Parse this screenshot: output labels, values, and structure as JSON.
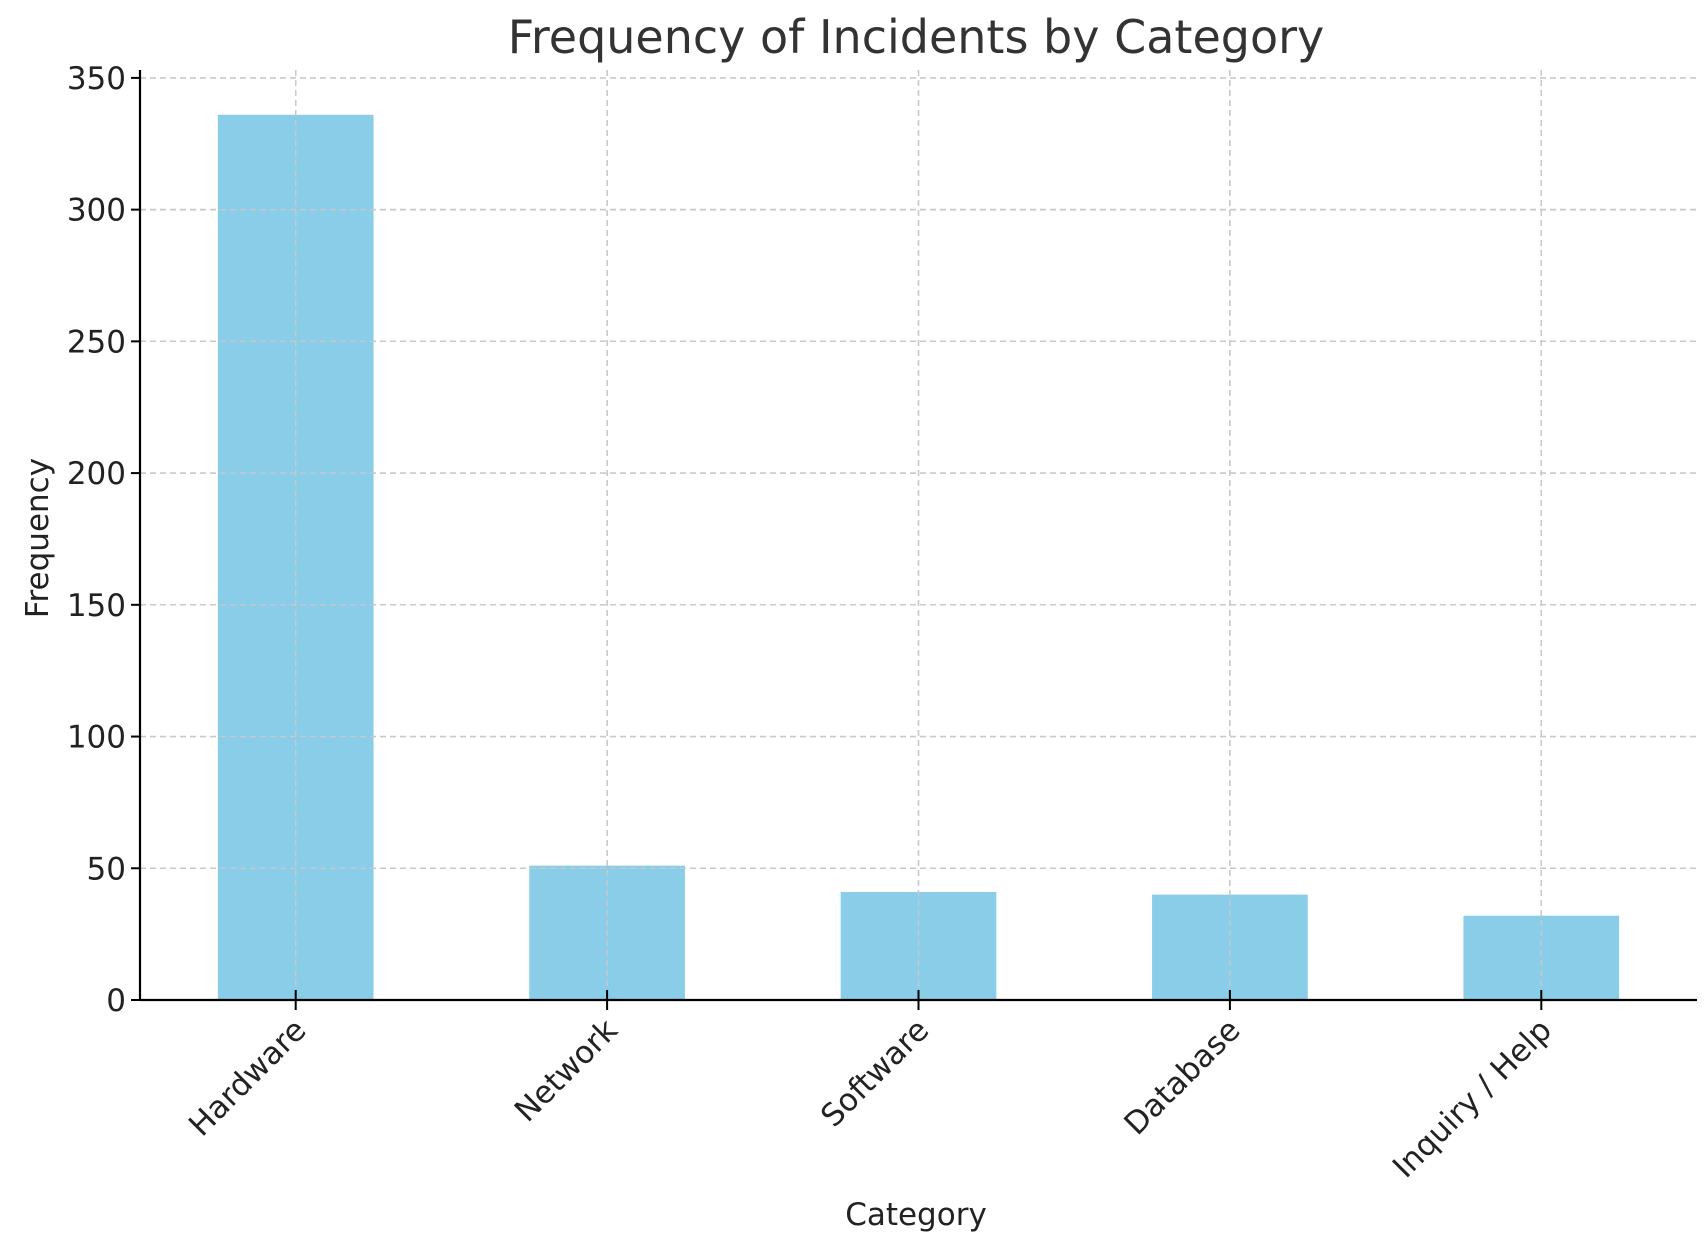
{
  "chart_data": {
    "type": "bar",
    "title": "Frequency of Incidents by Category",
    "xlabel": "Category",
    "ylabel": "Frequency",
    "categories": [
      "Hardware",
      "Network",
      "Software",
      "Database",
      "Inquiry / Help"
    ],
    "values": [
      336,
      51,
      41,
      40,
      32
    ],
    "ylim": [
      0,
      353
    ],
    "yticks": [
      0,
      50,
      100,
      150,
      200,
      250,
      300,
      350
    ],
    "grid": true,
    "bar_color": "#89CDE9",
    "grid_color": "#c8c8c8",
    "axis_color": "#000000",
    "text_color": "#333333"
  }
}
